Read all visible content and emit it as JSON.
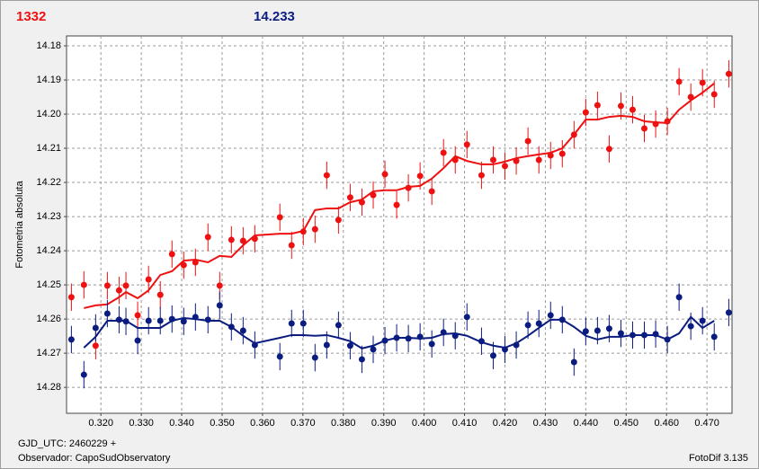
{
  "chart_data": {
    "type": "scatter",
    "ylabel": "Fotometria absoluta",
    "footer_left": [
      "GJD_UTC: 2460229 +",
      "Observador: CapoSudObservatory"
    ],
    "footer_right": "FotoDif 3.135",
    "xlim": [
      0.3115,
      0.4762
    ],
    "ylim": [
      14.2876,
      14.1771
    ],
    "xticks": [
      {
        "value": 0.32,
        "label": "0.320"
      },
      {
        "value": 0.33,
        "label": "0.330"
      },
      {
        "value": 0.34,
        "label": "0.340"
      },
      {
        "value": 0.35,
        "label": "0.350"
      },
      {
        "value": 0.36,
        "label": "0.360"
      },
      {
        "value": 0.37,
        "label": "0.370"
      },
      {
        "value": 0.38,
        "label": "0.380"
      },
      {
        "value": 0.39,
        "label": "0.390"
      },
      {
        "value": 0.4,
        "label": "0.400"
      },
      {
        "value": 0.41,
        "label": "0.410"
      },
      {
        "value": 0.42,
        "label": "0.420"
      },
      {
        "value": 0.43,
        "label": "0.430"
      },
      {
        "value": 0.44,
        "label": "0.440"
      },
      {
        "value": 0.45,
        "label": "0.450"
      },
      {
        "value": 0.46,
        "label": "0.460"
      },
      {
        "value": 0.47,
        "label": "0.470"
      }
    ],
    "yticks": [
      14.18,
      14.19,
      {
        "value": 14.2,
        "label": "14.20"
      },
      14.21,
      14.22,
      14.23,
      14.24,
      14.25,
      14.26,
      14.27,
      14.28
    ],
    "grid": true,
    "x": [
      0.3127,
      0.3158,
      0.3187,
      0.3216,
      0.3245,
      0.3262,
      0.3291,
      0.3318,
      0.3347,
      0.3376,
      0.3405,
      0.3434,
      0.3465,
      0.3494,
      0.3523,
      0.3552,
      0.3581,
      0.3643,
      0.3672,
      0.3701,
      0.373,
      0.3759,
      0.3788,
      0.3817,
      0.3846,
      0.3874,
      0.3903,
      0.3932,
      0.3961,
      0.399,
      0.4019,
      0.4048,
      0.4077,
      0.4106,
      0.4142,
      0.4171,
      0.42,
      0.4228,
      0.4257,
      0.4284,
      0.4313,
      0.4342,
      0.4371,
      0.44,
      0.4429,
      0.4458,
      0.4487,
      0.4516,
      0.4545,
      0.4573,
      0.4602,
      0.4631,
      0.466,
      0.4689,
      0.4718,
      0.4754
    ],
    "series": [
      {
        "name": "1332",
        "color": "#ee1111",
        "error": 0.004,
        "values": [
          14.2536,
          14.25,
          14.2678,
          14.2502,
          14.2516,
          14.2502,
          14.2589,
          14.2484,
          14.2529,
          14.241,
          14.2442,
          14.2434,
          14.236,
          14.2502,
          14.2368,
          14.2371,
          14.2365,
          14.2302,
          14.2384,
          14.2344,
          14.2337,
          14.2179,
          14.231,
          14.2244,
          14.2258,
          14.2237,
          14.2176,
          14.2266,
          14.2216,
          14.2181,
          14.2226,
          14.2113,
          14.2134,
          14.2089,
          14.2179,
          14.2134,
          14.2152,
          14.2137,
          14.2079,
          14.2134,
          14.2121,
          14.2116,
          14.206,
          14.1995,
          14.1974,
          14.2102,
          14.1976,
          14.1987,
          14.2042,
          14.2029,
          14.2021,
          14.1905,
          14.195,
          14.1908,
          14.1942,
          14.1882
        ],
        "fit": [
          null,
          14.2568,
          14.256,
          14.2557,
          14.2536,
          14.2521,
          14.2539,
          14.2516,
          14.2471,
          14.246,
          14.2429,
          14.2426,
          14.2434,
          14.2415,
          14.2418,
          14.2384,
          14.2355,
          14.235,
          14.235,
          14.2342,
          14.2281,
          14.2276,
          14.2276,
          14.2258,
          14.225,
          14.2226,
          14.2223,
          14.2223,
          14.2213,
          14.221,
          14.2189,
          14.2158,
          14.2123,
          14.2137,
          14.2147,
          14.2147,
          14.2139,
          14.2129,
          14.2123,
          14.2118,
          14.2113,
          14.21,
          14.206,
          14.2016,
          14.2016,
          14.2008,
          14.2005,
          14.2008,
          14.2021,
          14.2024,
          14.2026,
          14.1987,
          14.196,
          14.1937,
          14.191,
          null
        ]
      },
      {
        "name": "14.233",
        "color": "#0b1c80",
        "error": 0.004,
        "values": [
          14.266,
          14.2763,
          14.2626,
          14.2584,
          14.2602,
          14.2607,
          14.2663,
          14.2605,
          14.2605,
          14.26,
          14.2607,
          14.2594,
          14.2602,
          14.256,
          14.2623,
          14.2634,
          14.2676,
          14.271,
          14.2613,
          14.2613,
          14.2713,
          14.2676,
          14.2618,
          14.2678,
          14.2718,
          14.2689,
          14.2663,
          14.2655,
          14.2657,
          14.2652,
          14.2673,
          14.2639,
          14.2649,
          14.2594,
          14.2665,
          14.2707,
          14.2689,
          14.2676,
          14.2618,
          14.2613,
          14.2589,
          14.2602,
          14.2726,
          14.2636,
          14.2634,
          14.2628,
          14.2642,
          14.2647,
          14.2647,
          14.2644,
          14.266,
          14.2536,
          14.2621,
          14.2605,
          14.2652,
          14.2581
        ],
        "fit": [
          null,
          14.2684,
          14.2652,
          14.2605,
          14.2605,
          14.2605,
          14.2626,
          14.2626,
          14.2626,
          14.2605,
          14.2597,
          14.26,
          14.2605,
          14.2605,
          14.2623,
          14.2649,
          14.2671,
          14.2655,
          14.2647,
          14.2647,
          14.2649,
          14.2647,
          14.2655,
          14.2665,
          14.2686,
          14.2678,
          14.2663,
          14.2655,
          14.2655,
          14.2657,
          14.2655,
          14.2644,
          14.2642,
          14.2649,
          14.2668,
          14.2678,
          14.2684,
          14.2671,
          14.2649,
          14.2626,
          14.2602,
          14.2602,
          14.2623,
          14.2649,
          14.266,
          14.2652,
          14.2652,
          14.2647,
          14.2647,
          14.2647,
          14.266,
          14.2642,
          14.2594,
          14.2626,
          14.2605,
          null
        ]
      }
    ]
  }
}
